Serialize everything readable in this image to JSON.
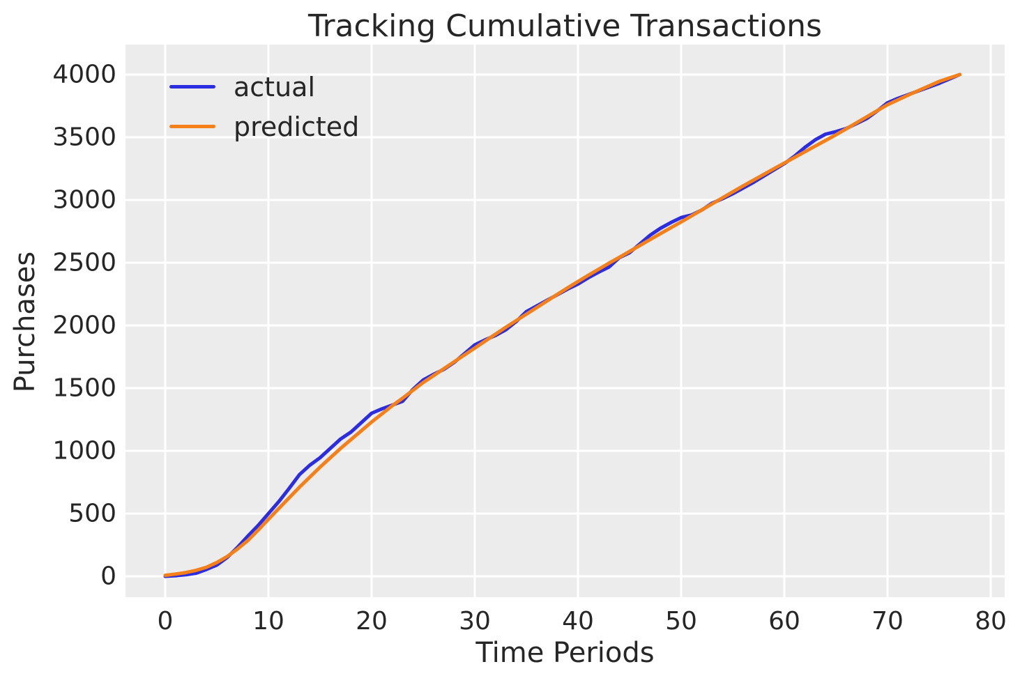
{
  "figure": {
    "title": "Tracking Cumulative Transactions"
  },
  "chart_data": {
    "type": "line",
    "title": "Tracking Cumulative Transactions",
    "xlabel": "Time Periods",
    "ylabel": "Purchases",
    "xlim": [
      -3.9,
      81.4
    ],
    "ylim": [
      -167,
      4239
    ],
    "grid": true,
    "legend_position": "upper left",
    "plot_background": "#ececec",
    "gridline_color": "#ffffff",
    "text_color": "#262626",
    "xticks": [
      0,
      10,
      20,
      30,
      40,
      50,
      60,
      70,
      80
    ],
    "yticks": [
      0,
      500,
      1000,
      1500,
      2000,
      2500,
      3000,
      3500,
      4000
    ],
    "x": [
      0,
      1,
      2,
      3,
      4,
      5,
      6,
      7,
      8,
      9,
      10,
      11,
      12,
      13,
      14,
      15,
      16,
      17,
      18,
      19,
      20,
      21,
      22,
      23,
      24,
      25,
      26,
      27,
      28,
      29,
      30,
      31,
      32,
      33,
      34,
      35,
      36,
      37,
      38,
      39,
      40,
      41,
      42,
      43,
      44,
      45,
      46,
      47,
      48,
      49,
      50,
      51,
      52,
      53,
      54,
      55,
      56,
      57,
      58,
      59,
      60,
      61,
      62,
      63,
      64,
      65,
      66,
      67,
      68,
      69,
      70,
      71,
      72,
      73,
      74,
      75,
      76,
      77
    ],
    "series": [
      {
        "name": "actual",
        "color": "#2c2ce0",
        "values": [
          0,
          5,
          12,
          25,
          55,
          90,
          150,
          230,
          320,
          405,
          500,
          595,
          700,
          810,
          885,
          945,
          1020,
          1095,
          1150,
          1225,
          1300,
          1335,
          1365,
          1395,
          1490,
          1565,
          1610,
          1650,
          1705,
          1775,
          1845,
          1885,
          1920,
          1965,
          2030,
          2110,
          2155,
          2200,
          2245,
          2290,
          2330,
          2380,
          2425,
          2465,
          2540,
          2580,
          2650,
          2720,
          2775,
          2820,
          2860,
          2880,
          2920,
          2975,
          3010,
          3050,
          3095,
          3140,
          3190,
          3240,
          3290,
          3350,
          3420,
          3480,
          3525,
          3545,
          3570,
          3610,
          3650,
          3710,
          3775,
          3810,
          3840,
          3870,
          3900,
          3930,
          3965,
          4000
        ]
      },
      {
        "name": "predicted",
        "color": "#f5801a",
        "values": [
          8,
          18,
          30,
          48,
          72,
          110,
          158,
          218,
          285,
          368,
          455,
          540,
          625,
          710,
          790,
          870,
          945,
          1020,
          1090,
          1160,
          1230,
          1295,
          1360,
          1420,
          1483,
          1545,
          1600,
          1655,
          1710,
          1765,
          1820,
          1875,
          1930,
          1985,
          2038,
          2090,
          2143,
          2195,
          2248,
          2300,
          2350,
          2400,
          2448,
          2496,
          2543,
          2590,
          2638,
          2685,
          2732,
          2779,
          2825,
          2873,
          2921,
          2969,
          3017,
          3065,
          3112,
          3158,
          3204,
          3250,
          3295,
          3340,
          3385,
          3430,
          3475,
          3520,
          3568,
          3616,
          3664,
          3712,
          3760,
          3798,
          3836,
          3873,
          3909,
          3945,
          3973,
          4000
        ]
      }
    ]
  }
}
